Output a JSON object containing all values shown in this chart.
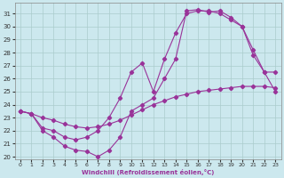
{
  "xlabel": "Windchill (Refroidissement éolien,°C)",
  "xlim": [
    -0.5,
    23.5
  ],
  "ylim": [
    19.8,
    31.8
  ],
  "yticks": [
    20,
    21,
    22,
    23,
    24,
    25,
    26,
    27,
    28,
    29,
    30,
    31
  ],
  "xticks": [
    0,
    1,
    2,
    3,
    4,
    5,
    6,
    7,
    8,
    9,
    10,
    11,
    12,
    13,
    14,
    15,
    16,
    17,
    18,
    19,
    20,
    21,
    22,
    23
  ],
  "background_color": "#cce8ee",
  "grid_color": "#aacccc",
  "line_color": "#993399",
  "curve1_x": [
    0,
    1,
    2,
    3,
    4,
    5,
    6,
    7,
    8,
    9,
    10,
    11,
    12,
    13,
    14,
    15,
    16,
    17,
    18,
    19,
    20,
    21,
    22,
    23
  ],
  "curve1_y": [
    23.5,
    23.3,
    23.0,
    22.8,
    22.5,
    22.3,
    22.2,
    22.3,
    22.5,
    22.8,
    23.2,
    23.6,
    24.0,
    24.3,
    24.6,
    24.8,
    25.0,
    25.1,
    25.2,
    25.3,
    25.4,
    25.4,
    25.4,
    25.3
  ],
  "curve2_x": [
    0,
    1,
    2,
    3,
    4,
    5,
    6,
    7,
    8,
    9,
    10,
    11,
    12,
    13,
    14,
    15,
    16,
    17,
    18,
    19,
    20,
    21,
    22,
    23
  ],
  "curve2_y": [
    23.5,
    23.3,
    22.2,
    22.0,
    21.5,
    21.3,
    21.5,
    22.0,
    23.0,
    24.5,
    26.5,
    27.2,
    25.0,
    27.5,
    29.5,
    31.0,
    31.2,
    31.2,
    31.0,
    30.5,
    30.0,
    27.8,
    26.5,
    25.0
  ],
  "curve3_x": [
    0,
    1,
    2,
    3,
    4,
    5,
    6,
    7,
    8,
    9,
    10,
    11,
    12,
    13,
    14,
    15,
    16,
    17,
    18,
    19,
    20,
    21,
    22,
    23
  ],
  "curve3_y": [
    23.5,
    23.3,
    22.0,
    21.5,
    20.8,
    20.5,
    20.4,
    20.0,
    20.5,
    21.5,
    23.5,
    24.0,
    24.5,
    26.0,
    27.5,
    31.2,
    31.3,
    31.1,
    31.2,
    30.7,
    30.0,
    28.2,
    26.5,
    26.5
  ]
}
